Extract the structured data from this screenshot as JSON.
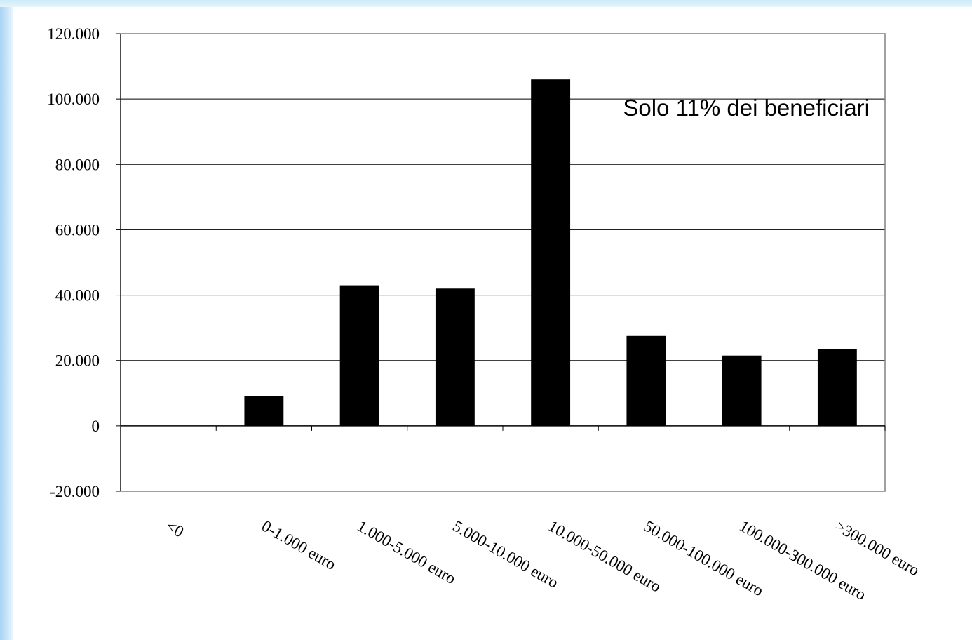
{
  "chart_data": {
    "type": "bar",
    "title": "",
    "xlabel": "",
    "ylabel": "",
    "categories": [
      "<0",
      "0-1.000 euro",
      "1.000-5.000 euro",
      "5.000-10.000 euro",
      "10.000-50.000 euro",
      "50.000-100.000 euro",
      "100.000-300.000 euro",
      ">300.000 euro"
    ],
    "values": [
      0,
      9000,
      43000,
      42000,
      106000,
      27500,
      21500,
      23500
    ],
    "ylim": [
      -20000,
      120000
    ],
    "yticks": [
      -20000,
      0,
      20000,
      40000,
      60000,
      80000,
      100000,
      120000
    ],
    "ytick_labels": [
      "-20.000",
      "0",
      "20.000",
      "40.000",
      "60.000",
      "80.000",
      "100.000",
      "120.000"
    ],
    "grid": true,
    "bar_color": "#000000",
    "annotation": "Solo 11% dei beneficiari"
  }
}
